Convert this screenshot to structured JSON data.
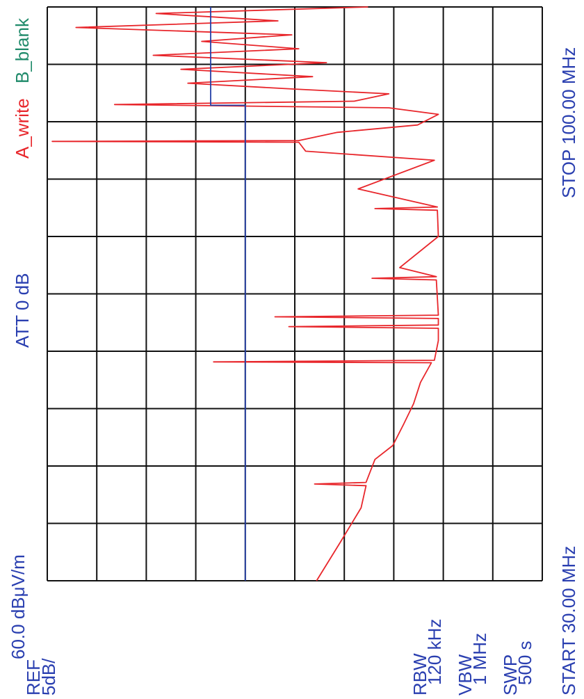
{
  "chart_data": {
    "type": "line",
    "reference": "REF",
    "reference_level": "60.0 dBμV/m",
    "scale": "5dB/",
    "attenuation": "ATT 0 dB",
    "start": "START 30.00 MHz",
    "stop": "STOP 100.00 MHz",
    "settings": [
      {
        "label": "RBW",
        "value": "120 kHz"
      },
      {
        "label": "VBW",
        "value": "1 MHz"
      },
      {
        "label": "SWP",
        "value": "500 s"
      }
    ],
    "xlim": [
      30,
      100
    ],
    "xticks": [
      30,
      37,
      44,
      51,
      58,
      65,
      72,
      79,
      86,
      93,
      100
    ],
    "ylim": [
      10,
      60
    ],
    "yticks": [
      10,
      15,
      20,
      25,
      30,
      35,
      40,
      45,
      50,
      55,
      60
    ],
    "grid": true,
    "series": [
      {
        "name": "A_write",
        "color": "#e8262b",
        "label_color": "#e8262b",
        "x": [
          30,
          34.7,
          38.9,
          41.6,
          41.8,
          42.0,
          44.8,
          46.5,
          49.1,
          51.6,
          54.2,
          56.6,
          56.7,
          56.9,
          59.3,
          60.8,
          61.0,
          61.2,
          62.0,
          62.2,
          62.4,
          66.7,
          66.9,
          67.1,
          68.2,
          72.0,
          75.2,
          75.4,
          75.6,
          77.8,
          81.3,
          82.4,
          83.5,
          83.6,
          83.7,
          84.7,
          85.6,
          86.9,
          87.7,
          88.1,
          88.5,
          89.4,
          90.0,
          90.7,
          91.5,
          92.4,
          93.2,
          94.1,
          94.9,
          95.8,
          96.6,
          97.5,
          98.3,
          99.2,
          100
        ],
        "values": [
          32.8,
          30.4,
          28.3,
          27.8,
          33.0,
          27.8,
          26.9,
          25.1,
          24.0,
          23.0,
          22.3,
          21.2,
          43.2,
          20.9,
          20.5,
          20.5,
          35.6,
          20.5,
          20.5,
          37.0,
          20.5,
          20.7,
          27.2,
          20.7,
          24.4,
          20.5,
          20.6,
          26.9,
          20.6,
          28.6,
          20.9,
          33.9,
          34.6,
          59.5,
          34.6,
          30.7,
          22.6,
          20.5,
          25.5,
          53.2,
          29.0,
          25.5,
          35.3,
          45.8,
          33.2,
          46.5,
          31.8,
          49.3,
          34.6,
          44.4,
          35.3,
          57.1,
          36.7,
          49.0,
          27.6
        ]
      },
      {
        "name": "B_blank",
        "color": "#2540a8",
        "label_color": "#1f8a6a",
        "x": [
          30,
          88,
          88,
          100
        ],
        "values": [
          40,
          40,
          43.5,
          43.5
        ]
      }
    ]
  }
}
